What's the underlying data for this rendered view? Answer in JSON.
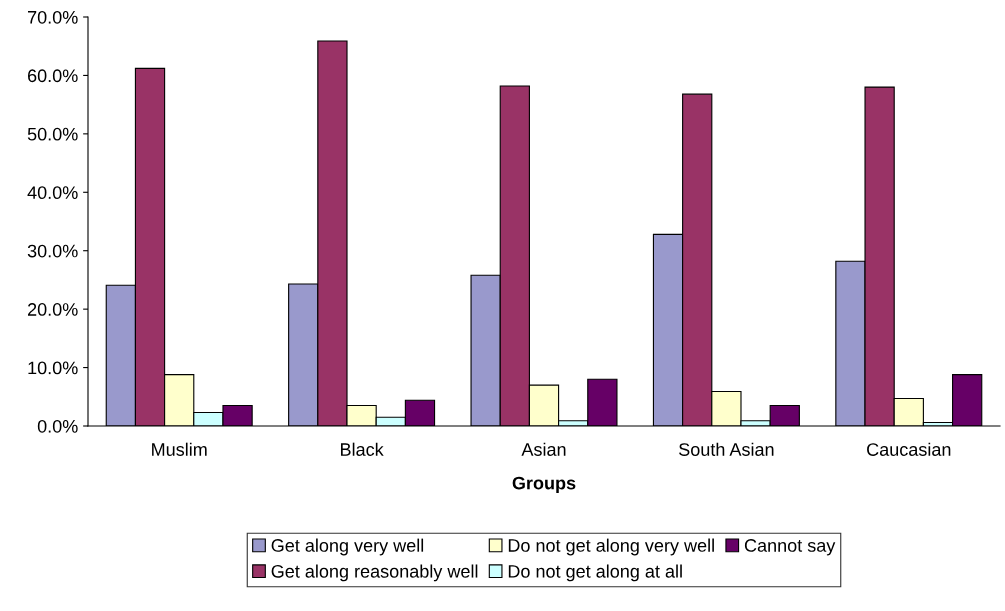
{
  "chart_data": {
    "type": "bar",
    "xlabel": "Groups",
    "categories": [
      "Muslim",
      "Black",
      "Asian",
      "South Asian",
      "Caucasian"
    ],
    "series": [
      {
        "name": "Get along very well",
        "color": "#9999cc",
        "values": [
          24.1,
          24.3,
          25.8,
          32.8,
          28.2
        ]
      },
      {
        "name": "Get along reasonably well",
        "color": "#993366",
        "values": [
          61.2,
          65.9,
          58.2,
          56.8,
          58.0
        ]
      },
      {
        "name": "Do not get along very well",
        "color": "#ffffcc",
        "values": [
          8.8,
          3.5,
          7.0,
          5.9,
          4.7
        ]
      },
      {
        "name": "Do not get along at all",
        "color": "#ccffff",
        "values": [
          2.3,
          1.5,
          0.9,
          0.9,
          0.6
        ]
      },
      {
        "name": "Cannot say",
        "color": "#660066",
        "values": [
          3.5,
          4.4,
          8.0,
          3.5,
          8.8
        ]
      }
    ],
    "ylim": [
      0,
      70
    ],
    "yticks": [
      {
        "value": 0,
        "label": "0.0%"
      },
      {
        "value": 10,
        "label": "10.0%"
      },
      {
        "value": 20,
        "label": "20.0%"
      },
      {
        "value": 30,
        "label": "30.0%"
      },
      {
        "value": 40,
        "label": "40.0%"
      },
      {
        "value": 50,
        "label": "50.0%"
      },
      {
        "value": 60,
        "label": "60.0%"
      },
      {
        "value": 70,
        "label": "70.0%"
      }
    ],
    "grid": false,
    "legend": "bottom"
  }
}
